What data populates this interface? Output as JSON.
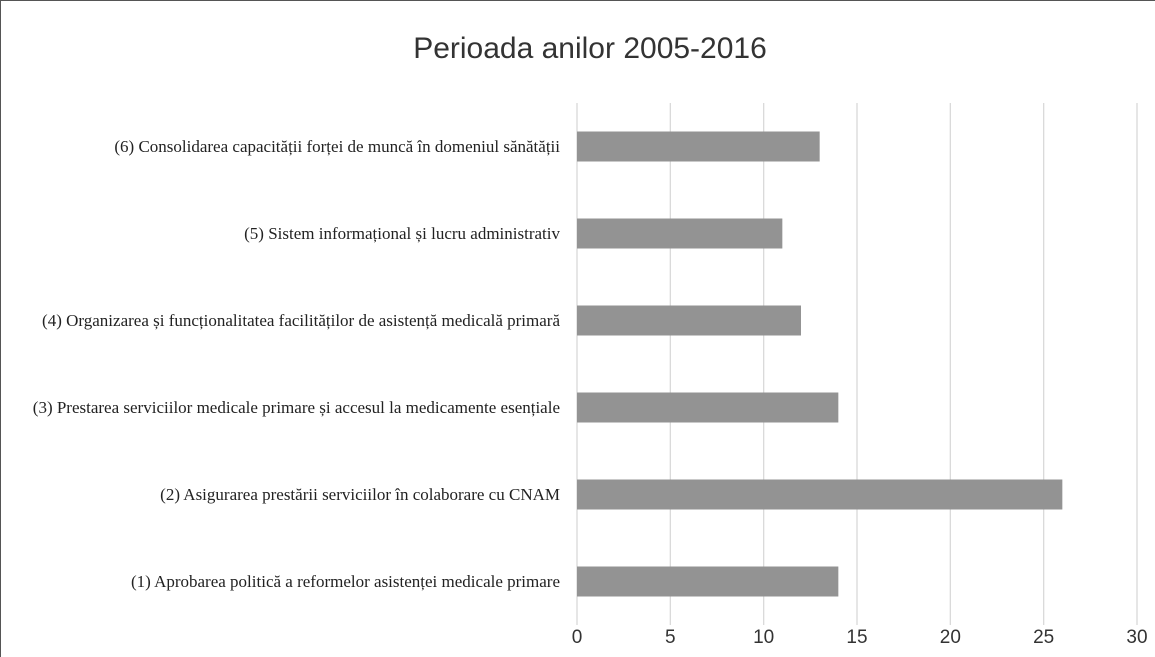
{
  "chart_data": {
    "type": "barh",
    "title": "Perioada anilor 2005-2016",
    "categories": [
      "(6) Consolidarea capacității forței de muncă în domeniul sănătății",
      "(5) Sistem informațional și lucru administrativ",
      "(4) Organizarea și funcționalitatea facilităților de asistență medicală primară",
      "(3) Prestarea serviciilor medicale primare și accesul la medicamente esențiale",
      "(2) Asigurarea prestării serviciilor în colaborare cu CNAM",
      "(1) Aprobarea politică a reformelor asistenței medicale primare"
    ],
    "values": [
      13,
      11,
      12,
      14,
      26,
      14
    ],
    "color": "#939393",
    "xlim": [
      0,
      30
    ],
    "xticks": [
      0,
      5,
      10,
      15,
      20,
      25,
      30
    ],
    "grid": true
  }
}
